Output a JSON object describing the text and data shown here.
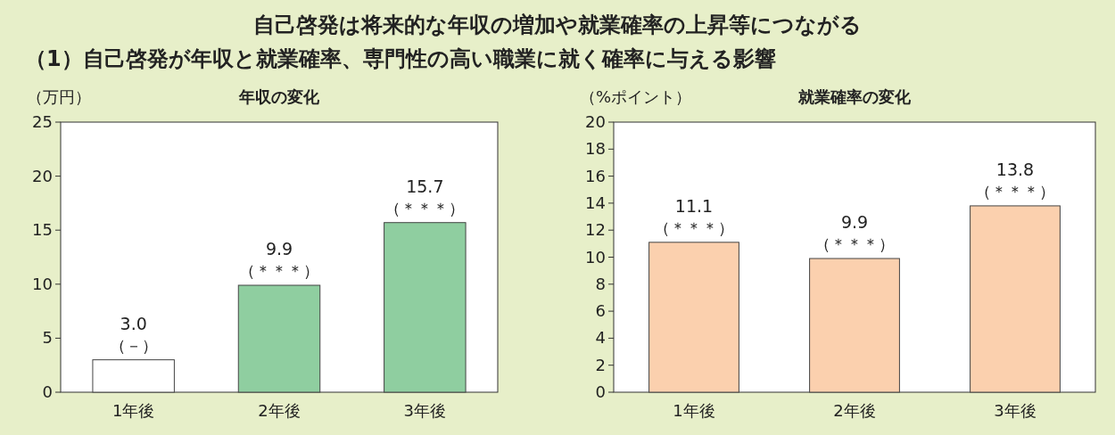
{
  "chart_data": [
    {
      "type": "bar",
      "title": "年収の変化",
      "ylabel": "（万円）",
      "categories": [
        "1年後",
        "2年後",
        "3年後"
      ],
      "values": [
        3.0,
        9.9,
        15.7
      ],
      "colors": [
        "#ffffff",
        "#8fcea0",
        "#8fcea0"
      ],
      "value_labels": [
        "3.0",
        "9.9",
        "15.7"
      ],
      "ylim": [
        0,
        25
      ],
      "yticks": [
        0,
        5,
        10,
        15,
        20,
        25
      ],
      "grid": false,
      "annotations": [
        "自己啓発は将来的な年収の増加や就業確率の上昇等につながる",
        "（1）自己啓発が年収と就業確率、専門性の高い職業に就く確率に与える影響",
        {
          "text": "（－）",
          "x": "1年後",
          "y": 3.0
        },
        {
          "text": "（＊＊＊）",
          "x": "2年後",
          "y": 9.9
        },
        {
          "text": "（＊＊＊）",
          "x": "3年後",
          "y": 15.7
        }
      ]
    },
    {
      "type": "bar",
      "title": "就業確率の変化",
      "ylabel": "（%ポイント）",
      "categories": [
        "1年後",
        "2年後",
        "3年後"
      ],
      "values": [
        11.1,
        9.9,
        13.8
      ],
      "color": "#fbd0ae",
      "value_labels": [
        "11.1",
        "9.9",
        "13.8"
      ],
      "ylim": [
        0,
        20
      ],
      "yticks": [
        0,
        2,
        4,
        6,
        8,
        10,
        12,
        14,
        16,
        18,
        20
      ],
      "grid": false,
      "annotations": [
        {
          "text": "（＊＊＊）",
          "x": "1年後",
          "y": 11.1
        },
        {
          "text": "（＊＊＊）",
          "x": "2年後",
          "y": 9.9
        },
        {
          "text": "（＊＊＊）",
          "x": "3年後",
          "y": 13.8
        }
      ]
    }
  ]
}
